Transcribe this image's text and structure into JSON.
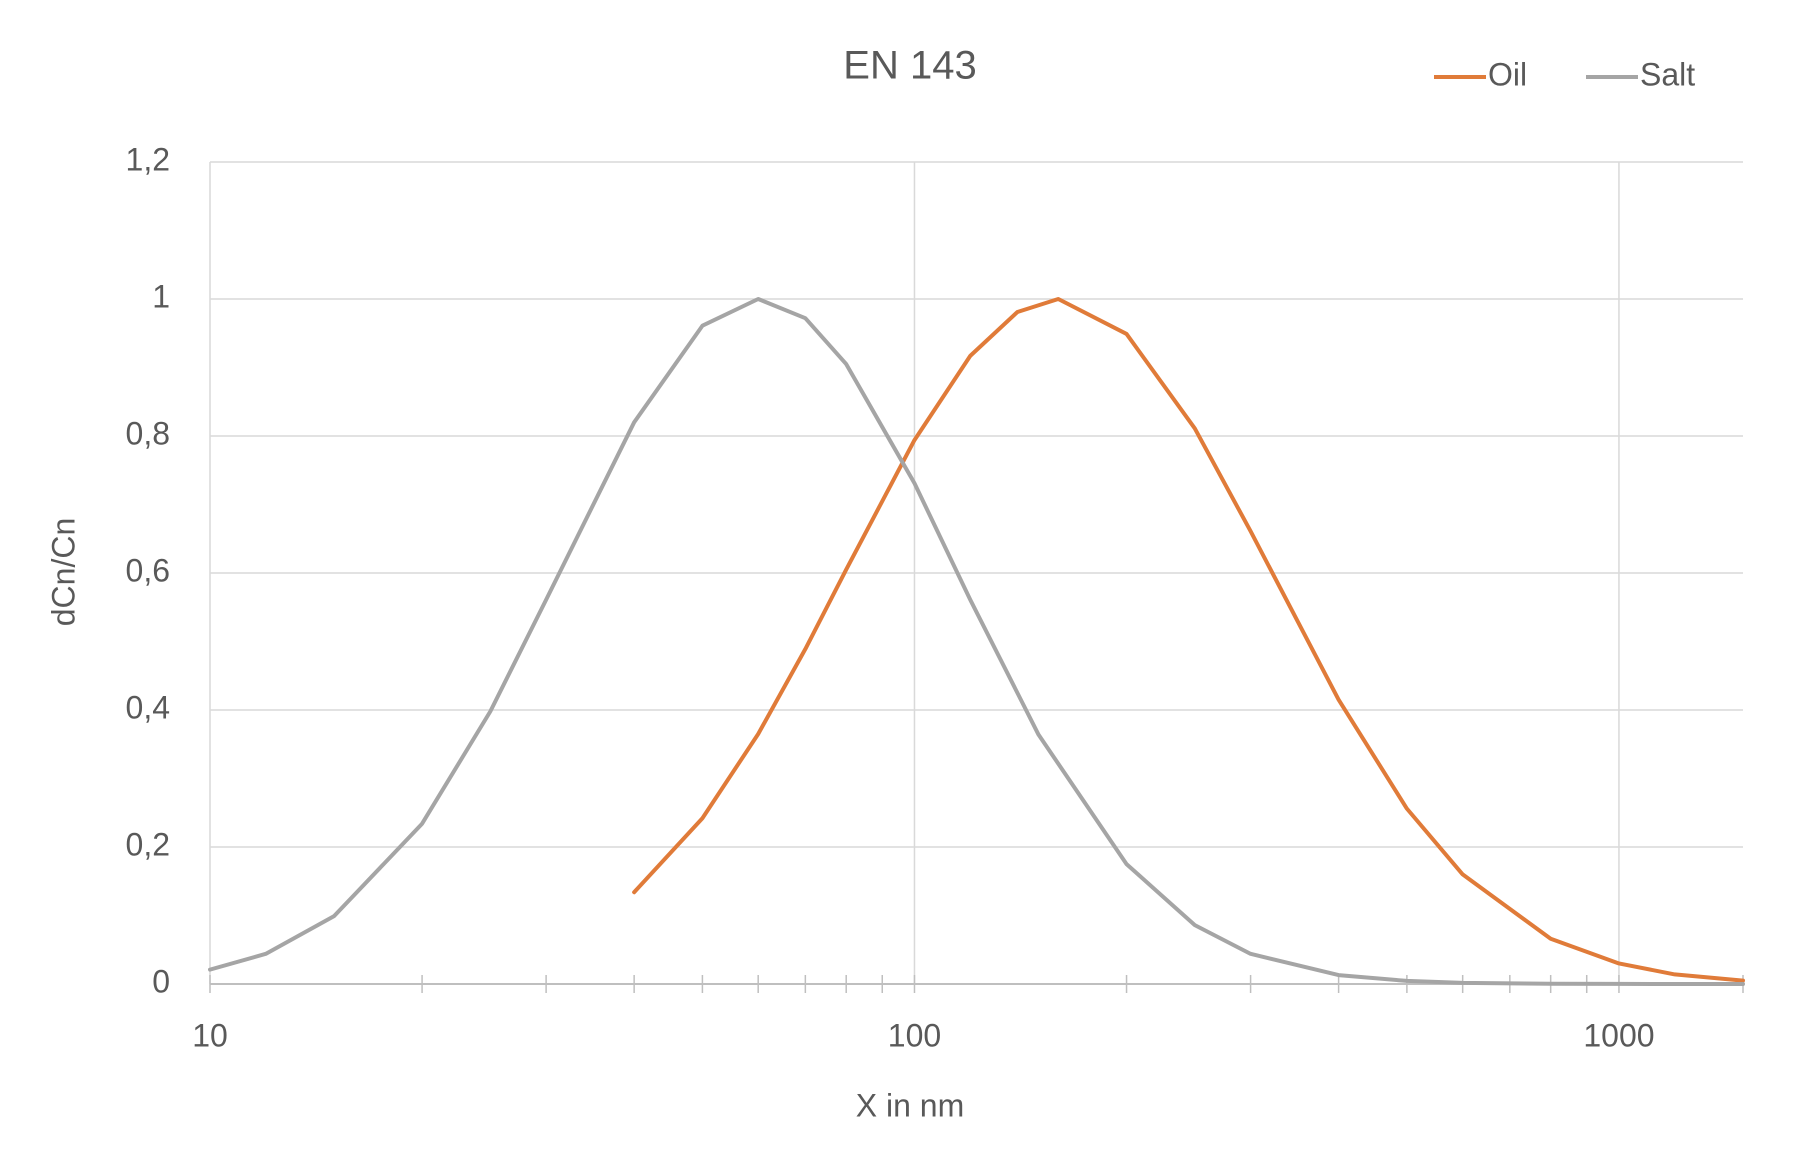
{
  "chart_data": {
    "type": "line",
    "title": "EN 143",
    "x_label": "X in nm",
    "y_label": "dCn/Cn",
    "xscale": "log",
    "xlim": [
      10,
      1500
    ],
    "xticks": [
      10,
      100,
      1000
    ],
    "xminorticks": [
      20,
      30,
      40,
      50,
      60,
      70,
      80,
      90,
      200,
      300,
      400,
      500,
      600,
      700,
      800,
      900
    ],
    "ylim": [
      0,
      1.2
    ],
    "yticks": [
      0,
      {
        "value": 0.2,
        "label": "0,2"
      },
      {
        "value": 0.4,
        "label": "0,4"
      },
      {
        "value": 0.6,
        "label": "0,6"
      },
      {
        "value": 0.8,
        "label": "0,8"
      },
      1,
      {
        "value": 1.2,
        "label": "1,2"
      }
    ],
    "grid": true,
    "legend": "top-right",
    "series": [
      {
        "name": "Oil",
        "color": "#e07b39",
        "x": [
          40,
          50,
          60,
          70,
          80,
          100,
          120,
          140,
          160,
          200,
          250,
          300,
          400,
          500,
          600,
          800,
          1000,
          1200,
          1500
        ],
        "values": [
          0.134,
          0.242,
          0.365,
          0.489,
          0.605,
          0.794,
          0.917,
          0.981,
          1,
          0.949,
          0.811,
          0.661,
          0.415,
          0.256,
          0.16,
          0.066,
          0.03,
          0.014,
          0.005
        ]
      },
      {
        "name": "Salt",
        "color": "#a5a5a5",
        "x": [
          10,
          12,
          15,
          20,
          25,
          30,
          40,
          50,
          60,
          70,
          80,
          100,
          120,
          150,
          200,
          250,
          300,
          400,
          500,
          600,
          800,
          1000,
          1500
        ],
        "values": [
          0.021,
          0.044,
          0.099,
          0.234,
          0.398,
          0.561,
          0.82,
          0.961,
          1,
          0.972,
          0.905,
          0.731,
          0.561,
          0.364,
          0.175,
          0.086,
          0.044,
          0.013,
          0.0045,
          0.0017,
          0.0003,
          0.0001,
          0
        ]
      }
    ]
  }
}
